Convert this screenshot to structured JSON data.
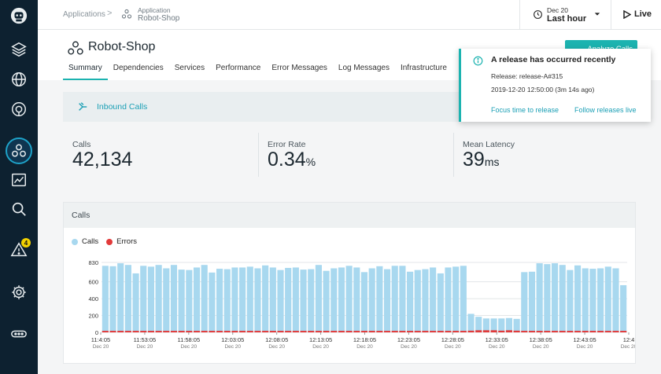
{
  "rail": {
    "icons": [
      "robot-logo-icon",
      "layers-icon",
      "globe-icon",
      "target-icon",
      "applications-icon",
      "dashboard-icon",
      "search-analyze-icon",
      "alert-icon",
      "settings-icon",
      "more-icon"
    ],
    "alert_count": "4",
    "active_color": "#1ea2c8"
  },
  "topbar": {
    "breadcrumb_root": "Applications",
    "breadcrumb_separator": ">",
    "app_type": "Application",
    "app_name": "Robot-Shop",
    "time_date": "Dec 20",
    "time_range": "Last hour",
    "live_label": "Live"
  },
  "page": {
    "title": "Robot-Shop",
    "analyze_button": "Analyze Calls",
    "tabs": [
      "Summary",
      "Dependencies",
      "Services",
      "Performance",
      "Error Messages",
      "Log Messages",
      "Infrastructure"
    ],
    "active_tab": "Summary",
    "accent_color": "#1cb3b0"
  },
  "inbound": {
    "label": "Inbound Calls"
  },
  "stats": [
    {
      "label": "Calls",
      "value": "42,134",
      "unit": ""
    },
    {
      "label": "Error Rate",
      "value": "0.34",
      "unit": "%"
    },
    {
      "label": "Mean Latency",
      "value": "39",
      "unit": "ms"
    }
  ],
  "toast": {
    "title": "A release has occurred recently",
    "release_line": "Release: release-A#315",
    "time_line": "2019-12-20 12:50:00 (3m 14s ago)",
    "focus_link": "Focus time to release",
    "follow_link": "Follow releases live"
  },
  "chart_panel": {
    "title": "Calls",
    "legend": [
      {
        "name": "Calls",
        "color": "#a8d8ef"
      },
      {
        "name": "Errors",
        "color": "#e23a3a"
      }
    ]
  },
  "chart_data": {
    "type": "bar",
    "title": "Calls",
    "xlabel": "",
    "ylabel": "",
    "ylim": [
      0,
      830
    ],
    "y_ticks": [
      0,
      200,
      400,
      600,
      830
    ],
    "x_tick_labels": [
      "11:4:05",
      "11:53:05",
      "11:58:05",
      "12:03:05",
      "12:08:05",
      "12:13:05",
      "12:18:05",
      "12:23:05",
      "12:28:05",
      "12:33:05",
      "12:38:05",
      "12:43:05",
      "12:4"
    ],
    "x_tick_sublabel": "Dec 20",
    "series": [
      {
        "name": "Calls",
        "color": "#a8d8ef",
        "values": [
          790,
          785,
          820,
          800,
          700,
          790,
          780,
          800,
          760,
          800,
          745,
          740,
          770,
          800,
          710,
          755,
          750,
          770,
          770,
          780,
          760,
          795,
          770,
          740,
          765,
          770,
          745,
          750,
          800,
          730,
          760,
          770,
          790,
          770,
          715,
          760,
          785,
          750,
          790,
          790,
          720,
          740,
          750,
          770,
          700,
          770,
          780,
          790,
          220,
          185,
          165,
          165,
          165,
          170,
          160,
          715,
          720,
          820,
          810,
          820,
          800,
          740,
          795,
          760,
          755,
          760,
          780,
          760,
          560
        ]
      },
      {
        "name": "Errors",
        "color": "#e23a3a",
        "values": [
          18,
          18,
          18,
          18,
          18,
          18,
          18,
          18,
          18,
          18,
          18,
          18,
          18,
          18,
          18,
          18,
          18,
          18,
          18,
          18,
          18,
          18,
          18,
          18,
          18,
          18,
          18,
          18,
          18,
          18,
          18,
          18,
          18,
          18,
          18,
          18,
          18,
          18,
          18,
          18,
          18,
          18,
          18,
          18,
          18,
          18,
          18,
          18,
          20,
          25,
          25,
          25,
          20,
          25,
          20,
          18,
          18,
          18,
          18,
          18,
          18,
          18,
          18,
          18,
          18,
          18,
          18,
          18,
          18
        ]
      }
    ],
    "grid": true,
    "legend_position": "top-left"
  }
}
